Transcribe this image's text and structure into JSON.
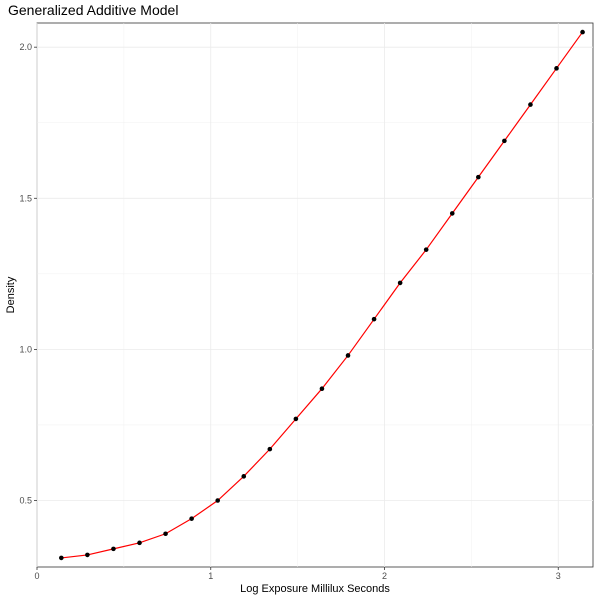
{
  "chart_data": {
    "type": "line",
    "title": "Generalized Additive Model",
    "xlabel": "Log Exposure Millilux Seconds",
    "ylabel": "Density",
    "xlim": [
      0,
      3.2
    ],
    "ylim": [
      0.28,
      2.08
    ],
    "x_ticks": [
      0,
      1,
      2,
      3
    ],
    "x_tick_labels": [
      "0",
      "1",
      "2",
      "3"
    ],
    "y_ticks": [
      0.5,
      1.0,
      1.5,
      2.0
    ],
    "y_tick_labels": [
      "0.5",
      "1.0",
      "1.5",
      "2.0"
    ],
    "grid": true,
    "series": [
      {
        "kind": "points",
        "color": "#000000",
        "x": [
          0.14,
          0.29,
          0.44,
          0.59,
          0.74,
          0.89,
          1.04,
          1.19,
          1.34,
          1.49,
          1.64,
          1.79,
          1.94,
          2.09,
          2.24,
          2.39,
          2.54,
          2.69,
          2.84,
          2.99,
          3.14
        ],
        "y": [
          0.31,
          0.32,
          0.34,
          0.36,
          0.39,
          0.44,
          0.5,
          0.58,
          0.67,
          0.77,
          0.87,
          0.98,
          1.1,
          1.22,
          1.33,
          1.45,
          1.57,
          1.69,
          1.81,
          1.93,
          2.05
        ]
      },
      {
        "kind": "fit",
        "color": "#ff0000",
        "x": [
          0.14,
          0.29,
          0.44,
          0.59,
          0.74,
          0.89,
          1.04,
          1.19,
          1.34,
          1.49,
          1.64,
          1.79,
          1.94,
          2.09,
          2.24,
          2.39,
          2.54,
          2.69,
          2.84,
          2.99,
          3.14
        ],
        "y": [
          0.31,
          0.32,
          0.34,
          0.36,
          0.39,
          0.44,
          0.5,
          0.58,
          0.67,
          0.77,
          0.87,
          0.98,
          1.1,
          1.22,
          1.33,
          1.45,
          1.57,
          1.69,
          1.81,
          1.93,
          2.05
        ]
      }
    ]
  }
}
